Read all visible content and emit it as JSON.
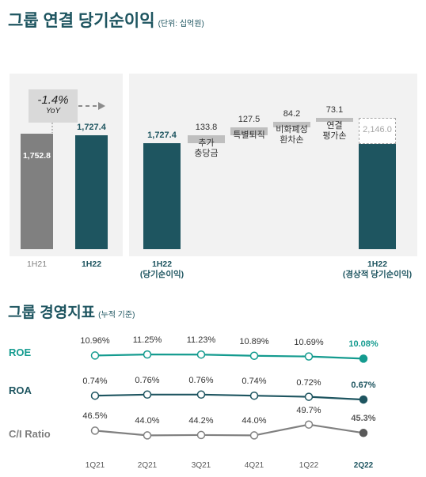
{
  "section1": {
    "title": "그룹 연결 당기순이익",
    "unit": "(단위: 십억원)",
    "yoy": {
      "value": "-1.4%",
      "label": "YoY"
    }
  },
  "section2": {
    "title": "그룹 경영지표",
    "subtitle": "(누적 기준)"
  },
  "colors": {
    "teal": "#1e5560",
    "grey": "#808080",
    "light_grey": "#bfbfbf",
    "light_teal": "#149b8f",
    "panel": "#f2f2f2"
  },
  "chart_data": [
    {
      "type": "bar",
      "categories": [
        "1H21",
        "1H22"
      ],
      "values": [
        1752.8,
        1727.4
      ],
      "value_labels": [
        "1,752.8",
        "1,727.4"
      ],
      "yoy": "-1.4%"
    },
    {
      "type": "waterfall",
      "steps": [
        {
          "label": "1H22\n(당기순이익)",
          "value": 1727.4,
          "value_label": "1,727.4",
          "kind": "total"
        },
        {
          "label": "추가\n충당금",
          "value": 133.8,
          "value_label": "133.8",
          "kind": "increase"
        },
        {
          "label": "특별퇴직",
          "value": 127.5,
          "value_label": "127.5",
          "kind": "increase"
        },
        {
          "label": "비화폐성\n환차손",
          "value": 84.2,
          "value_label": "84.2",
          "kind": "increase"
        },
        {
          "label": "연결\n평가손",
          "value": 73.1,
          "value_label": "73.1",
          "kind": "increase"
        },
        {
          "label": "1H22\n(경상적 당기순이익)",
          "value": 2146.0,
          "value_label": "2,146.0",
          "kind": "total"
        }
      ]
    },
    {
      "type": "line",
      "x": [
        "1Q21",
        "2Q21",
        "3Q21",
        "4Q21",
        "1Q22",
        "2Q22"
      ],
      "series": [
        {
          "name": "ROE",
          "values": [
            10.96,
            11.25,
            11.23,
            10.89,
            10.69,
            10.08
          ],
          "value_labels": [
            "10.96%",
            "11.25%",
            "11.23%",
            "10.89%",
            "10.69%",
            "10.08%"
          ]
        },
        {
          "name": "ROA",
          "values": [
            0.74,
            0.76,
            0.76,
            0.74,
            0.72,
            0.67
          ],
          "value_labels": [
            "0.74%",
            "0.76%",
            "0.76%",
            "0.74%",
            "0.72%",
            "0.67%"
          ]
        },
        {
          "name": "C/I Ratio",
          "values": [
            46.5,
            44.0,
            44.2,
            44.0,
            49.7,
            45.3
          ],
          "value_labels": [
            "46.5%",
            "44.0%",
            "44.2%",
            "44.0%",
            "49.7%",
            "45.3%"
          ]
        }
      ]
    }
  ]
}
